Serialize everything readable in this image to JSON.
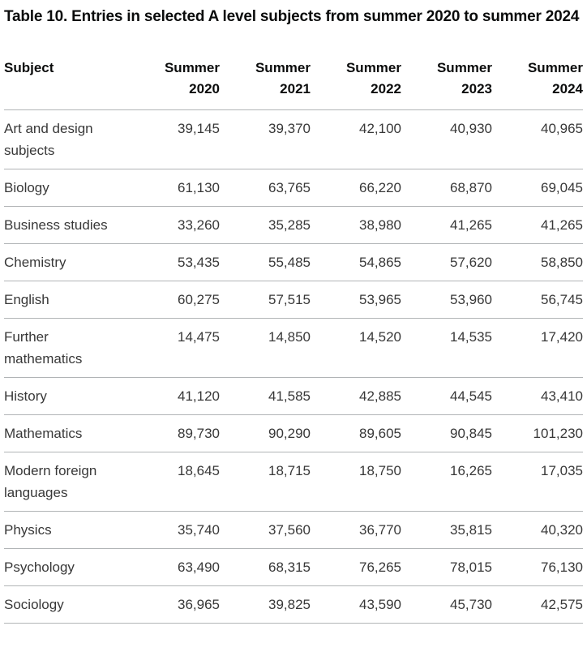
{
  "title": "Table 10. Entries in selected A level subjects from summer 2020 to summer 2024",
  "colors": {
    "title_text": "#0b0c0c",
    "header_text": "#0b0c0c",
    "body_text": "#383838",
    "row_border": "#b1b4b6",
    "background": "#ffffff"
  },
  "table": {
    "subject_header": "Subject",
    "columns": [
      {
        "season": "Summer",
        "year": "2020"
      },
      {
        "season": "Summer",
        "year": "2021"
      },
      {
        "season": "Summer",
        "year": "2022"
      },
      {
        "season": "Summer",
        "year": "2023"
      },
      {
        "season": "Summer",
        "year": "2024"
      }
    ],
    "rows": [
      {
        "subject": "Art and design subjects",
        "values": [
          "39,145",
          "39,370",
          "42,100",
          "40,930",
          "40,965"
        ]
      },
      {
        "subject": "Biology",
        "values": [
          "61,130",
          "63,765",
          "66,220",
          "68,870",
          "69,045"
        ]
      },
      {
        "subject": "Business studies",
        "values": [
          "33,260",
          "35,285",
          "38,980",
          "41,265",
          "41,265"
        ]
      },
      {
        "subject": "Chemistry",
        "values": [
          "53,435",
          "55,485",
          "54,865",
          "57,620",
          "58,850"
        ]
      },
      {
        "subject": "English",
        "values": [
          "60,275",
          "57,515",
          "53,965",
          "53,960",
          "56,745"
        ]
      },
      {
        "subject": "Further mathematics",
        "values": [
          "14,475",
          "14,850",
          "14,520",
          "14,535",
          "17,420"
        ]
      },
      {
        "subject": "History",
        "values": [
          "41,120",
          "41,585",
          "42,885",
          "44,545",
          "43,410"
        ]
      },
      {
        "subject": "Mathematics",
        "values": [
          "89,730",
          "90,290",
          "89,605",
          "90,845",
          "101,230"
        ]
      },
      {
        "subject": "Modern foreign languages",
        "values": [
          "18,645",
          "18,715",
          "18,750",
          "16,265",
          "17,035"
        ]
      },
      {
        "subject": "Physics",
        "values": [
          "35,740",
          "37,560",
          "36,770",
          "35,815",
          "40,320"
        ]
      },
      {
        "subject": "Psychology",
        "values": [
          "63,490",
          "68,315",
          "76,265",
          "78,015",
          "76,130"
        ]
      },
      {
        "subject": "Sociology",
        "values": [
          "36,965",
          "39,825",
          "43,590",
          "45,730",
          "42,575"
        ]
      }
    ]
  },
  "chart_data": {
    "type": "table",
    "title": "Table 10. Entries in selected A level subjects from summer 2020 to summer 2024",
    "columns": [
      "Subject",
      "Summer 2020",
      "Summer 2021",
      "Summer 2022",
      "Summer 2023",
      "Summer 2024"
    ],
    "rows": [
      [
        "Art and design subjects",
        39145,
        39370,
        42100,
        40930,
        40965
      ],
      [
        "Biology",
        61130,
        63765,
        66220,
        68870,
        69045
      ],
      [
        "Business studies",
        33260,
        35285,
        38980,
        41265,
        41265
      ],
      [
        "Chemistry",
        53435,
        55485,
        54865,
        57620,
        58850
      ],
      [
        "English",
        60275,
        57515,
        53965,
        53960,
        56745
      ],
      [
        "Further mathematics",
        14475,
        14850,
        14520,
        14535,
        17420
      ],
      [
        "History",
        41120,
        41585,
        42885,
        44545,
        43410
      ],
      [
        "Mathematics",
        89730,
        90290,
        89605,
        90845,
        101230
      ],
      [
        "Modern foreign languages",
        18645,
        18715,
        18750,
        16265,
        17035
      ],
      [
        "Physics",
        35740,
        37560,
        36770,
        35815,
        40320
      ],
      [
        "Psychology",
        63490,
        68315,
        76265,
        78015,
        76130
      ],
      [
        "Sociology",
        36965,
        39825,
        43590,
        45730,
        42575
      ]
    ]
  }
}
